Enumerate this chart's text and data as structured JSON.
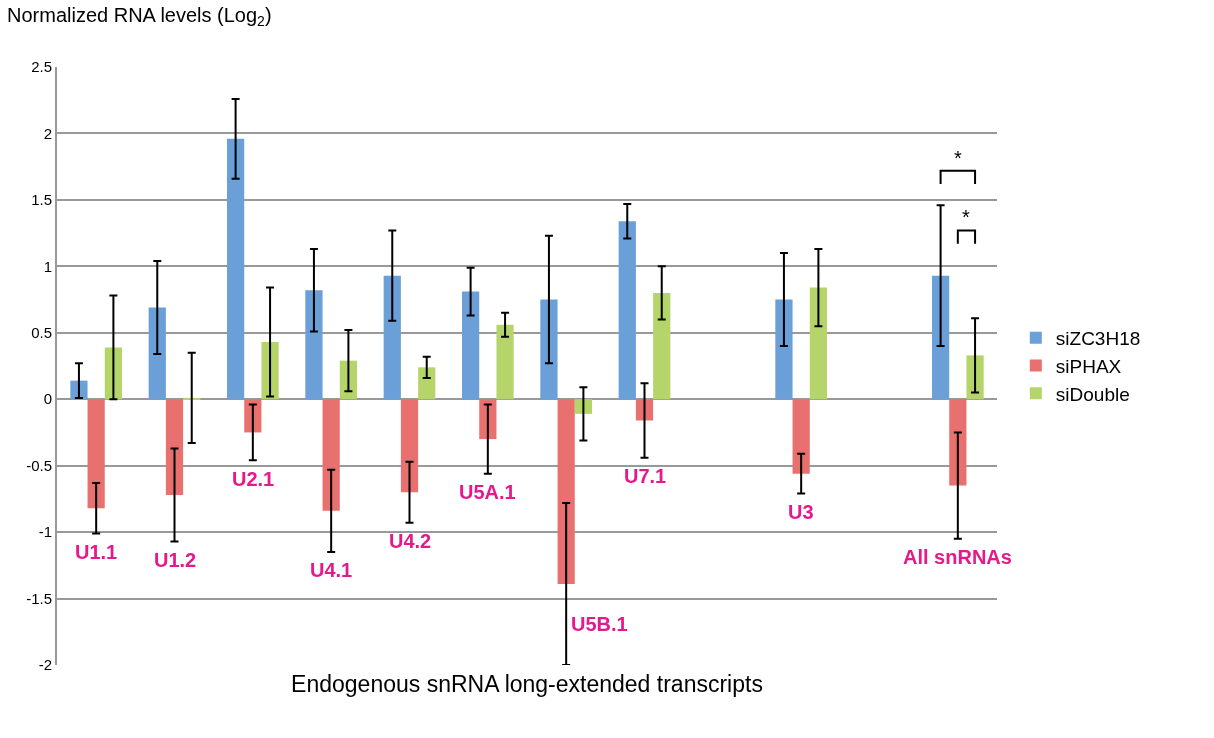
{
  "chart_data": {
    "type": "bar",
    "xlabel": "Endogenous snRNA long-extended transcripts",
    "ylabel": "Normalized RNA levels (Log$_{2}$)",
    "categories": [
      "U1.1",
      "U1.2",
      "U2.1",
      "U4.1",
      "U4.2",
      "U5A.1",
      "U5B.1",
      "U7.1",
      null,
      "U3",
      null,
      "All snRNAs"
    ],
    "series": [
      {
        "name": "siZC3H18",
        "color": "#6a9fd8",
        "values": [
          0.14,
          0.69,
          1.96,
          0.82,
          0.93,
          0.81,
          0.75,
          1.34,
          null,
          0.75,
          null,
          0.93
        ],
        "errors": [
          0.13,
          0.35,
          0.3,
          0.31,
          0.34,
          0.18,
          0.48,
          0.13,
          null,
          0.35,
          null,
          0.53
        ]
      },
      {
        "name": "siPHAX",
        "color": "#e8706e",
        "values": [
          -0.82,
          -0.72,
          -0.25,
          -0.84,
          -0.7,
          -0.3,
          -1.39,
          -0.16,
          null,
          -0.56,
          null,
          -0.65
        ],
        "errors": [
          0.19,
          0.35,
          0.21,
          0.31,
          0.23,
          0.26,
          0.61,
          0.28,
          null,
          0.15,
          null,
          0.4
        ]
      },
      {
        "name": "siDouble",
        "color": "#b5d56a",
        "values": [
          0.39,
          0.01,
          0.43,
          0.29,
          0.24,
          0.56,
          -0.11,
          0.8,
          null,
          0.84,
          null,
          0.33
        ],
        "errors": [
          0.39,
          0.34,
          0.41,
          0.23,
          0.08,
          0.09,
          0.2,
          0.2,
          null,
          0.29,
          null,
          0.28
        ]
      }
    ],
    "ylim": [
      -2,
      2.5
    ],
    "yticks": [
      -2,
      -1.5,
      -1,
      -0.5,
      0,
      0.5,
      1,
      1.5,
      2,
      2.5
    ],
    "grid": "y",
    "legend": "right",
    "tick_labels": "y",
    "annotations": [
      "*",
      "*"
    ]
  }
}
